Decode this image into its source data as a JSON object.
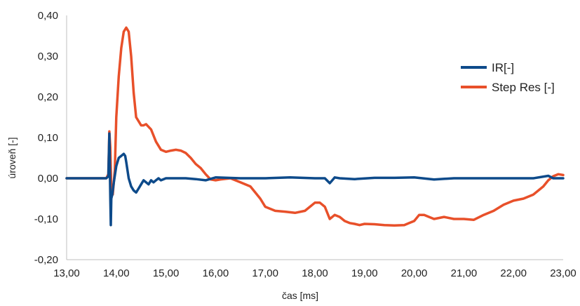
{
  "chart_data": {
    "type": "line",
    "xlabel": "čas [ms]",
    "ylabel": "úroveň [-]",
    "xlim": [
      13.0,
      23.0
    ],
    "ylim": [
      -0.2,
      0.4
    ],
    "x_ticks": [
      "13,00",
      "14,00",
      "15,00",
      "16,00",
      "17,00",
      "18,00",
      "19,00",
      "20,00",
      "21,00",
      "22,00",
      "23,00"
    ],
    "y_ticks": [
      "0,40",
      "0,30",
      "0,20",
      "0,10",
      "0,00",
      "-0,10",
      "-0,20"
    ],
    "legend_position": "right",
    "grid": false,
    "series": [
      {
        "name": "IR[-]",
        "color": "#0d4a8a",
        "x": [
          13.0,
          13.8,
          13.84,
          13.86,
          13.87,
          13.88,
          13.89,
          13.9,
          13.92,
          13.95,
          14.0,
          14.05,
          14.1,
          14.15,
          14.18,
          14.2,
          14.25,
          14.3,
          14.35,
          14.4,
          14.45,
          14.5,
          14.55,
          14.6,
          14.65,
          14.7,
          14.75,
          14.8,
          14.85,
          14.9,
          15.0,
          15.2,
          15.4,
          15.6,
          15.8,
          16.0,
          16.5,
          17.0,
          17.5,
          18.0,
          18.2,
          18.3,
          18.35,
          18.4,
          18.5,
          18.8,
          19.2,
          19.6,
          20.0,
          20.4,
          20.8,
          21.2,
          21.6,
          22.0,
          22.4,
          22.7,
          22.8,
          22.9,
          23.0
        ],
        "y": [
          0.0,
          0.0,
          0.005,
          0.11,
          0.03,
          -0.05,
          -0.115,
          -0.05,
          -0.04,
          -0.01,
          0.03,
          0.05,
          0.055,
          0.06,
          0.055,
          0.04,
          0.0,
          -0.02,
          -0.03,
          -0.035,
          -0.025,
          -0.015,
          -0.005,
          -0.01,
          -0.015,
          -0.005,
          -0.01,
          -0.005,
          0.0,
          -0.005,
          0.0,
          0.0,
          0.0,
          -0.002,
          -0.005,
          0.002,
          0.0,
          0.0,
          0.002,
          0.0,
          0.0,
          -0.012,
          -0.005,
          0.002,
          0.0,
          -0.002,
          0.001,
          0.001,
          0.002,
          -0.003,
          0.0,
          0.0,
          0.0,
          0.0,
          0.0,
          0.006,
          0.0,
          0.0,
          0.0
        ]
      },
      {
        "name": "Step Res [-]",
        "color": "#e8502a",
        "x": [
          13.0,
          13.8,
          13.84,
          13.86,
          13.88,
          13.9,
          13.93,
          13.97,
          14.0,
          14.05,
          14.1,
          14.15,
          14.2,
          14.25,
          14.3,
          14.35,
          14.4,
          14.45,
          14.5,
          14.55,
          14.6,
          14.7,
          14.8,
          14.9,
          15.0,
          15.1,
          15.2,
          15.3,
          15.4,
          15.5,
          15.6,
          15.7,
          15.8,
          15.9,
          16.0,
          16.1,
          16.3,
          16.5,
          16.7,
          16.9,
          17.0,
          17.2,
          17.4,
          17.6,
          17.8,
          17.9,
          18.0,
          18.1,
          18.2,
          18.3,
          18.4,
          18.5,
          18.6,
          18.7,
          18.8,
          18.9,
          19.0,
          19.2,
          19.4,
          19.6,
          19.8,
          19.9,
          20.0,
          20.1,
          20.2,
          20.3,
          20.4,
          20.6,
          20.8,
          21.0,
          21.2,
          21.4,
          21.6,
          21.8,
          22.0,
          22.2,
          22.4,
          22.6,
          22.7,
          22.8,
          22.9,
          23.0
        ],
        "y": [
          0.0,
          0.0,
          0.01,
          0.115,
          0.075,
          -0.03,
          -0.04,
          0.02,
          0.15,
          0.25,
          0.32,
          0.36,
          0.37,
          0.36,
          0.3,
          0.21,
          0.15,
          0.14,
          0.13,
          0.13,
          0.133,
          0.12,
          0.09,
          0.07,
          0.065,
          0.068,
          0.07,
          0.068,
          0.062,
          0.05,
          0.035,
          0.025,
          0.01,
          -0.003,
          -0.005,
          -0.003,
          0.0,
          -0.01,
          -0.02,
          -0.05,
          -0.07,
          -0.08,
          -0.082,
          -0.085,
          -0.08,
          -0.07,
          -0.06,
          -0.06,
          -0.07,
          -0.1,
          -0.09,
          -0.095,
          -0.105,
          -0.11,
          -0.112,
          -0.115,
          -0.112,
          -0.113,
          -0.115,
          -0.116,
          -0.115,
          -0.11,
          -0.105,
          -0.09,
          -0.09,
          -0.095,
          -0.1,
          -0.095,
          -0.1,
          -0.1,
          -0.102,
          -0.09,
          -0.08,
          -0.065,
          -0.055,
          -0.05,
          -0.04,
          -0.02,
          -0.005,
          0.005,
          0.01,
          0.008
        ]
      }
    ]
  }
}
